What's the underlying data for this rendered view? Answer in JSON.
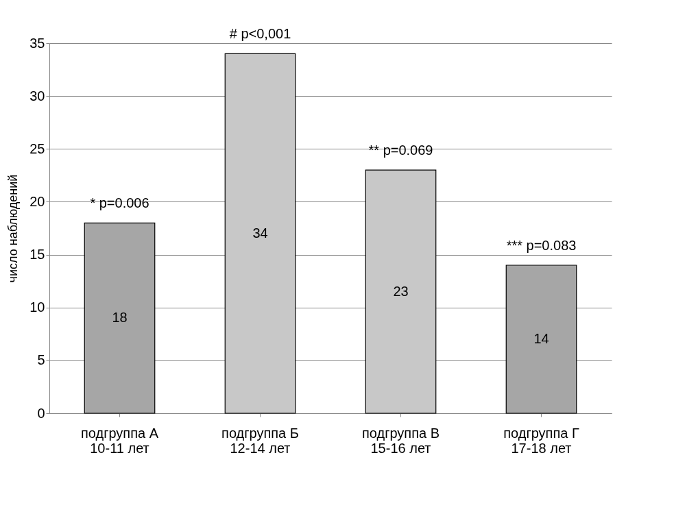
{
  "chart_data": {
    "type": "bar",
    "categories": [
      "подгруппа А\n10-11 лет",
      "подгруппа Б\n12-14 лет",
      "подгруппа В\n15-16 лет",
      "подгруппа Г\n17-18 лет"
    ],
    "values": [
      18,
      34,
      23,
      14
    ],
    "colors": [
      "#a6a6a6",
      "#c8c8c8",
      "#c8c8c8",
      "#a6a6a6"
    ],
    "ylabel": "число  наблюдений",
    "ylim": [
      0,
      35
    ],
    "yticks": [
      0,
      5,
      10,
      15,
      20,
      25,
      30,
      35
    ],
    "grid": "y",
    "data_labels": true,
    "annotations": [
      "* p=0.006",
      "# p<0,001",
      "** p=0.069",
      "*** p=0.083"
    ]
  }
}
